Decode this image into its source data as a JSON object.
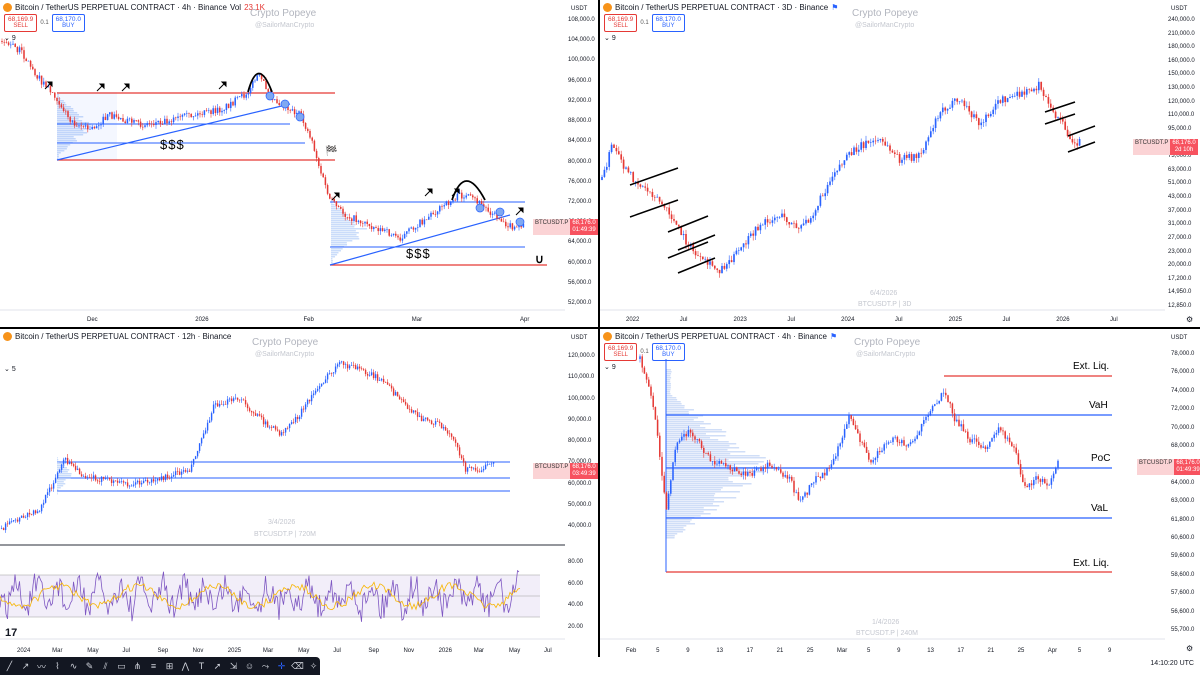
{
  "common": {
    "sell_price": "68,169.9",
    "sell_label": "SELL",
    "buy_price": "68,170.0",
    "buy_label": "BUY",
    "spread": "0.1",
    "currency": "USDT",
    "symbol_tag": "BTCUSDT.P",
    "last_price": "68,176.0",
    "watermark": "Crypto Popeye",
    "handle": "@SailorManCrypto",
    "brand_color": "#f7931a",
    "down_color": "#e53935",
    "up_color": "#2962ff"
  },
  "panes": {
    "tl": {
      "title": "Bitcoin / TetherUS PERPETUAL CONTRACT · 4h · Binance",
      "vol_label": "Vol",
      "vol_value": "23.1K",
      "indicator_count": "9",
      "countdown": "01:49:39",
      "y_ticks": [
        "108,000.0",
        "104,000.0",
        "100,000.0",
        "96,000.0",
        "92,000.0",
        "88,000.0",
        "84,000.0",
        "80,000.0",
        "76,000.0",
        "72,000.0",
        "68,000.0",
        "64,000.0",
        "60,000.0",
        "56,000.0",
        "52,000.0"
      ],
      "x_ticks": [
        "Dec",
        "2026",
        "Feb",
        "Mar",
        "Apr"
      ],
      "annotations": [
        "$$$",
        "$$$"
      ]
    },
    "tr": {
      "title": "Bitcoin / TetherUS PERPETUAL CONTRACT · 3D · Binance",
      "indicator_count": "9",
      "countdown": "2d 10h",
      "date_wm": "6/4/2026",
      "sym_wm": "BTCUSDT.P | 3D",
      "y_ticks": [
        "240,000.0",
        "210,000.0",
        "180,000.0",
        "160,000.0",
        "150,000.0",
        "130,000.0",
        "120,000.0",
        "110,000.0",
        "95,000.0",
        "83,000.0",
        "73,000.0",
        "63,000.0",
        "51,000.0",
        "43,000.0",
        "37,000.0",
        "31,000.0",
        "27,000.0",
        "23,000.0",
        "20,000.0",
        "17,200.0",
        "14,950.0",
        "12,850.0"
      ],
      "x_ticks": [
        "2022",
        "Jul",
        "2023",
        "Jul",
        "2024",
        "Jul",
        "2025",
        "Jul",
        "2026",
        "Jul"
      ]
    },
    "bl": {
      "title": "Bitcoin / TetherUS PERPETUAL CONTRACT · 12h · Binance",
      "indicator_count": "5",
      "countdown": "03:49:39",
      "date_wm": "3/4/2026",
      "sym_wm": "BTCUSDT.P | 720M",
      "y_ticks": [
        "120,000.0",
        "110,000.0",
        "100,000.0",
        "90,000.0",
        "80,000.0",
        "70,000.0",
        "60,000.0",
        "50,000.0",
        "40,000.0"
      ],
      "rsi_ticks": [
        "80.00",
        "60.00",
        "40.00",
        "20.00"
      ],
      "x_ticks": [
        "2024",
        "Mar",
        "May",
        "Jul",
        "Sep",
        "Nov",
        "2025",
        "Mar",
        "May",
        "Jul",
        "Sep",
        "Nov",
        "2026",
        "Mar",
        "May",
        "Jul"
      ]
    },
    "br": {
      "title": "Bitcoin / TetherUS PERPETUAL CONTRACT · 4h · Binance",
      "indicator_count": "9",
      "countdown": "01:49:39",
      "date_wm": "1/4/2026",
      "sym_wm": "BTCUSDT.P | 240M",
      "levels": [
        "Ext. Liq.",
        "VaH",
        "PoC",
        "VaL",
        "Ext. Liq."
      ],
      "y_ticks": [
        "78,000.0",
        "76,000.0",
        "74,000.0",
        "72,000.0",
        "70,000.0",
        "68,000.0",
        "66,000.0",
        "64,000.0",
        "63,000.0",
        "61,800.0",
        "60,600.0",
        "59,600.0",
        "58,600.0",
        "57,600.0",
        "56,600.0",
        "55,700.0"
      ],
      "x_ticks": [
        "Feb",
        "5",
        "9",
        "13",
        "17",
        "21",
        "25",
        "Mar",
        "5",
        "9",
        "13",
        "17",
        "21",
        "25",
        "Apr",
        "5",
        "9"
      ]
    }
  },
  "clock": "14:10:20 UTC"
}
